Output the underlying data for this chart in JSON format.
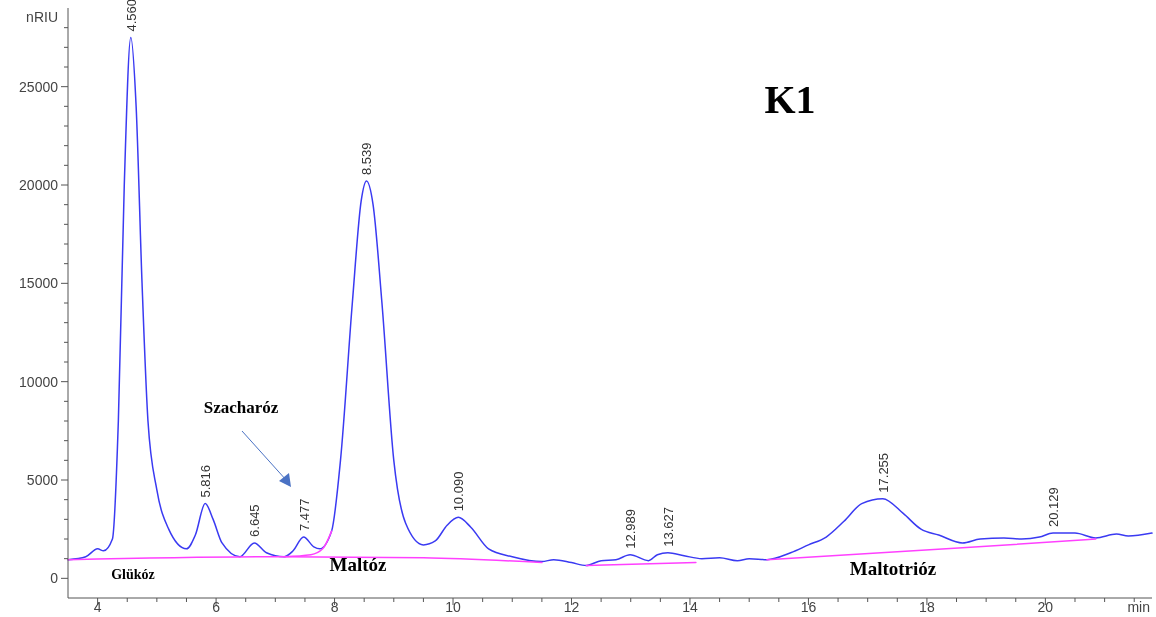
{
  "chart_data": {
    "type": "line",
    "title": "K1",
    "ylabel": "nRIU",
    "xlabel": "min",
    "xlim": [
      3.5,
      21.8
    ],
    "ylim": [
      -1000,
      29000
    ],
    "xticks": [
      4,
      {
        "value": 4.5,
        "label": null
      },
      {
        "value": 5,
        "label": null
      },
      {
        "value": 5.5,
        "label": null
      },
      6,
      {
        "value": 6.5,
        "label": null
      },
      {
        "value": 7,
        "label": null
      },
      {
        "value": 7.5,
        "label": null
      },
      8,
      {
        "value": 8.5,
        "label": null
      },
      {
        "value": 9,
        "label": null
      },
      {
        "value": 9.5,
        "label": null
      },
      10,
      {
        "value": 10.5,
        "label": null
      },
      {
        "value": 11,
        "label": null
      },
      {
        "value": 11.5,
        "label": null
      },
      12,
      {
        "value": 12.5,
        "label": null
      },
      {
        "value": 13,
        "label": null
      },
      {
        "value": 13.5,
        "label": null
      },
      14,
      {
        "value": 14.5,
        "label": null
      },
      {
        "value": 15,
        "label": null
      },
      {
        "value": 15.5,
        "label": null
      },
      16,
      {
        "value": 16.5,
        "label": null
      },
      {
        "value": 17,
        "label": null
      },
      {
        "value": 17.5,
        "label": null
      },
      18,
      {
        "value": 18.5,
        "label": null
      },
      {
        "value": 19,
        "label": null
      },
      {
        "value": 19.5,
        "label": null
      },
      20,
      {
        "value": 20.5,
        "label": null
      },
      {
        "value": 21,
        "label": null
      },
      {
        "value": 21.5,
        "label": null
      }
    ],
    "yticks": [
      0,
      {
        "value": 1000,
        "label": null
      },
      {
        "value": 2000,
        "label": null
      },
      {
        "value": 3000,
        "label": null
      },
      {
        "value": 4000,
        "label": null
      },
      5000,
      {
        "value": 6000,
        "label": null
      },
      {
        "value": 7000,
        "label": null
      },
      {
        "value": 8000,
        "label": null
      },
      {
        "value": 9000,
        "label": null
      },
      10000,
      {
        "value": 11000,
        "label": null
      },
      {
        "value": 12000,
        "label": null
      },
      {
        "value": 13000,
        "label": null
      },
      {
        "value": 14000,
        "label": null
      },
      15000,
      {
        "value": 16000,
        "label": null
      },
      {
        "value": 17000,
        "label": null
      },
      {
        "value": 18000,
        "label": null
      },
      {
        "value": 19000,
        "label": null
      },
      20000,
      {
        "value": 21000,
        "label": null
      },
      {
        "value": 22000,
        "label": null
      },
      {
        "value": 23000,
        "label": null
      },
      {
        "value": 24000,
        "label": null
      },
      25000,
      {
        "value": 26000,
        "label": null
      },
      {
        "value": 27000,
        "label": null
      },
      {
        "value": 28000,
        "label": null
      }
    ],
    "grid": false,
    "marker": "none",
    "line_style": "solid",
    "series": [
      {
        "color": "#3a3af2",
        "x": [
          3.5,
          3.8,
          4.0,
          4.1,
          4.25,
          4.35,
          4.45,
          4.56,
          4.65,
          4.75,
          4.85,
          5.0,
          5.2,
          5.5,
          5.65,
          5.816,
          5.95,
          6.1,
          6.4,
          6.645,
          6.85,
          7.15,
          7.3,
          7.477,
          7.65,
          7.75,
          7.95,
          8.1,
          8.3,
          8.45,
          8.539,
          8.65,
          8.8,
          9.0,
          9.2,
          9.5,
          9.7,
          9.9,
          10.09,
          10.3,
          10.6,
          11.0,
          11.5,
          11.7,
          12.0,
          12.25,
          12.5,
          12.75,
          12.989,
          13.3,
          13.45,
          13.627,
          13.9,
          14.2,
          14.5,
          14.8,
          15.0,
          15.3,
          15.7,
          16.0,
          16.3,
          16.6,
          16.9,
          17.255,
          17.6,
          17.9,
          18.2,
          18.6,
          18.9,
          19.3,
          19.6,
          19.9,
          20.129,
          20.5,
          20.85,
          21.2,
          21.4,
          21.8
        ],
        "values": [
          950,
          1100,
          1500,
          1400,
          2000,
          8000,
          20000,
          27500,
          24000,
          15000,
          8000,
          4500,
          2500,
          1500,
          2200,
          3800,
          3000,
          1800,
          1100,
          1800,
          1300,
          1100,
          1400,
          2100,
          1600,
          1500,
          2400,
          6000,
          14000,
          19200,
          20200,
          19000,
          14000,
          6000,
          2800,
          1700,
          1900,
          2700,
          3100,
          2600,
          1500,
          1100,
          850,
          950,
          800,
          650,
          900,
          950,
          1200,
          900,
          1200,
          1300,
          1150,
          1000,
          1050,
          900,
          1000,
          950,
          1300,
          1700,
          2100,
          2900,
          3800,
          4050,
          3300,
          2500,
          2200,
          1800,
          2000,
          2050,
          2000,
          2100,
          2300,
          2300,
          2050,
          2250,
          2150,
          2300
        ]
      },
      {
        "color": "#ff40ff",
        "x": [
          3.5,
          7.15,
          9.5,
          11.5
        ],
        "values": [
          950,
          1100,
          1050,
          800
        ]
      },
      {
        "color": "#ff40ff",
        "x": [
          7.15,
          7.6,
          7.8,
          7.95
        ],
        "values": [
          1100,
          1200,
          1500,
          2400
        ]
      },
      {
        "color": "#ff40ff",
        "x": [
          12.25,
          14.1
        ],
        "values": [
          650,
          800
        ]
      },
      {
        "color": "#ff40ff",
        "x": [
          15.3,
          18.6,
          20.85
        ],
        "values": [
          950,
          1550,
          2000
        ]
      }
    ],
    "annotations": [
      "Glükóz",
      "Maltóz",
      "Maltotrióz",
      "Szacharóz",
      {
        "text": "4.560",
        "x": 4.56,
        "y": 27500
      },
      {
        "text": "5.816",
        "x": 5.816,
        "y": 3800
      },
      {
        "text": "6.645",
        "x": 6.645,
        "y": 1800
      },
      {
        "text": "7.477",
        "x": 7.477,
        "y": 2100
      },
      {
        "text": "8.539",
        "x": 8.539,
        "y": 20200
      },
      {
        "text": "10.090",
        "x": 10.09,
        "y": 3100
      },
      {
        "text": "12.989",
        "x": 12.989,
        "y": 1200
      },
      {
        "text": "13.627",
        "x": 13.627,
        "y": 1300
      },
      {
        "text": "17.255",
        "x": 17.255,
        "y": 4050
      },
      {
        "text": "20.129",
        "x": 20.129,
        "y": 2300
      }
    ]
  }
}
